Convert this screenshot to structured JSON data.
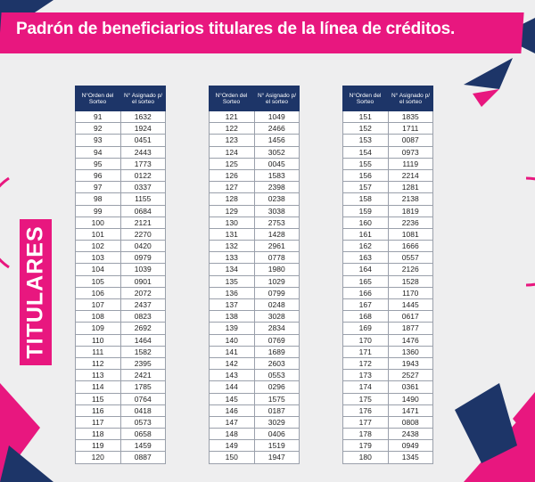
{
  "header": {
    "title": "Padrón de beneficiarios titulares de la línea de créditos."
  },
  "side_label": "TITULARES",
  "column_headers": [
    "N°Orden del Sorteo",
    "N° Asignado p/ el sorteo"
  ],
  "tables": [
    {
      "rows": [
        [
          "91",
          "1632"
        ],
        [
          "92",
          "1924"
        ],
        [
          "93",
          "0451"
        ],
        [
          "94",
          "2443"
        ],
        [
          "95",
          "1773"
        ],
        [
          "96",
          "0122"
        ],
        [
          "97",
          "0337"
        ],
        [
          "98",
          "1155"
        ],
        [
          "99",
          "0684"
        ],
        [
          "100",
          "2121"
        ],
        [
          "101",
          "2270"
        ],
        [
          "102",
          "0420"
        ],
        [
          "103",
          "0979"
        ],
        [
          "104",
          "1039"
        ],
        [
          "105",
          "0901"
        ],
        [
          "106",
          "2072"
        ],
        [
          "107",
          "2437"
        ],
        [
          "108",
          "0823"
        ],
        [
          "109",
          "2692"
        ],
        [
          "110",
          "1464"
        ],
        [
          "111",
          "1582"
        ],
        [
          "112",
          "2395"
        ],
        [
          "113",
          "2421"
        ],
        [
          "114",
          "1785"
        ],
        [
          "115",
          "0764"
        ],
        [
          "116",
          "0418"
        ],
        [
          "117",
          "0573"
        ],
        [
          "118",
          "0658"
        ],
        [
          "119",
          "1459"
        ],
        [
          "120",
          "0887"
        ]
      ]
    },
    {
      "rows": [
        [
          "121",
          "1049"
        ],
        [
          "122",
          "2466"
        ],
        [
          "123",
          "1456"
        ],
        [
          "124",
          "3052"
        ],
        [
          "125",
          "0045"
        ],
        [
          "126",
          "1583"
        ],
        [
          "127",
          "2398"
        ],
        [
          "128",
          "0238"
        ],
        [
          "129",
          "3038"
        ],
        [
          "130",
          "2753"
        ],
        [
          "131",
          "1428"
        ],
        [
          "132",
          "2961"
        ],
        [
          "133",
          "0778"
        ],
        [
          "134",
          "1980"
        ],
        [
          "135",
          "1029"
        ],
        [
          "136",
          "0799"
        ],
        [
          "137",
          "0248"
        ],
        [
          "138",
          "3028"
        ],
        [
          "139",
          "2834"
        ],
        [
          "140",
          "0769"
        ],
        [
          "141",
          "1689"
        ],
        [
          "142",
          "2603"
        ],
        [
          "143",
          "0553"
        ],
        [
          "144",
          "0296"
        ],
        [
          "145",
          "1575"
        ],
        [
          "146",
          "0187"
        ],
        [
          "147",
          "3029"
        ],
        [
          "148",
          "0406"
        ],
        [
          "149",
          "1519"
        ],
        [
          "150",
          "1947"
        ]
      ]
    },
    {
      "rows": [
        [
          "151",
          "1835"
        ],
        [
          "152",
          "1711"
        ],
        [
          "153",
          "0087"
        ],
        [
          "154",
          "0973"
        ],
        [
          "155",
          "1119"
        ],
        [
          "156",
          "2214"
        ],
        [
          "157",
          "1281"
        ],
        [
          "158",
          "2138"
        ],
        [
          "159",
          "1819"
        ],
        [
          "160",
          "2236"
        ],
        [
          "161",
          "1081"
        ],
        [
          "162",
          "1666"
        ],
        [
          "163",
          "0557"
        ],
        [
          "164",
          "2126"
        ],
        [
          "165",
          "1528"
        ],
        [
          "166",
          "1170"
        ],
        [
          "167",
          "1445"
        ],
        [
          "168",
          "0617"
        ],
        [
          "169",
          "1877"
        ],
        [
          "170",
          "1476"
        ],
        [
          "171",
          "1360"
        ],
        [
          "172",
          "1943"
        ],
        [
          "173",
          "2527"
        ],
        [
          "174",
          "0361"
        ],
        [
          "175",
          "1490"
        ],
        [
          "176",
          "1471"
        ],
        [
          "177",
          "0808"
        ],
        [
          "178",
          "2438"
        ],
        [
          "179",
          "0949"
        ],
        [
          "180",
          "1345"
        ]
      ]
    }
  ]
}
